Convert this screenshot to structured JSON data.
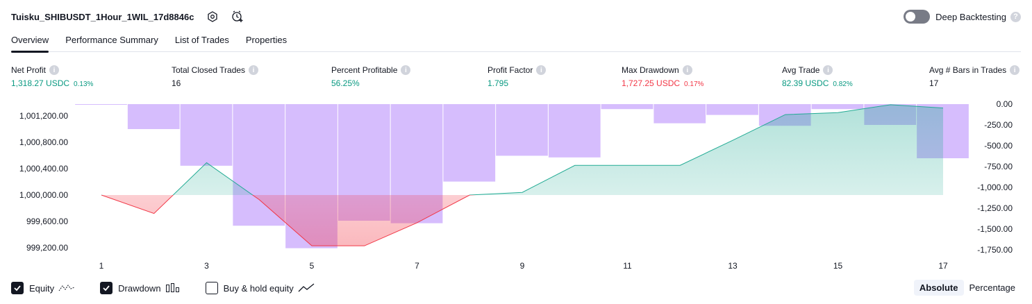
{
  "header": {
    "strategy_name": "Tuisku_SHIBUSDT_1Hour_1WIL_17d8846c",
    "deep_backtesting_label": "Deep Backtesting",
    "deep_backtesting_on": false,
    "icons": [
      "settings-icon",
      "add-alert-icon",
      "help-icon"
    ]
  },
  "tabs": [
    {
      "label": "Overview",
      "active": true
    },
    {
      "label": "Performance Summary",
      "active": false
    },
    {
      "label": "List of Trades",
      "active": false
    },
    {
      "label": "Properties",
      "active": false
    }
  ],
  "metrics": [
    {
      "label": "Net Profit",
      "value": "1,318.27 USDC",
      "pct": "0.13%",
      "color": "green"
    },
    {
      "label": "Total Closed Trades",
      "value": "16",
      "pct": "",
      "color": "dark"
    },
    {
      "label": "Percent Profitable",
      "value": "56.25%",
      "pct": "",
      "color": "green"
    },
    {
      "label": "Profit Factor",
      "value": "1.795",
      "pct": "",
      "color": "green"
    },
    {
      "label": "Max Drawdown",
      "value": "1,727.25 USDC",
      "pct": "0.17%",
      "color": "red"
    },
    {
      "label": "Avg Trade",
      "value": "82.39 USDC",
      "pct": "0.82%",
      "color": "green"
    },
    {
      "label": "Avg # Bars in Trades",
      "value": "17",
      "pct": "",
      "color": "dark"
    }
  ],
  "chart_data": {
    "type": "line",
    "x_ticks": [
      "1",
      "3",
      "5",
      "7",
      "9",
      "11",
      "13",
      "15",
      "17"
    ],
    "left_axis_ticks": [
      "1,001,200.00",
      "1,000,800.00",
      "1,000,400.00",
      "1,000,000.00",
      "999,600.00",
      "999,200.00"
    ],
    "right_axis_ticks": [
      "0.00",
      "-250.00",
      "-500.00",
      "-750.00",
      "-1,000.00",
      "-1,250.00",
      "-1,500.00",
      "-1,750.00"
    ],
    "equity_baseline": 1000000,
    "series": [
      {
        "name": "Equity",
        "axis": "left",
        "x": [
          1,
          2,
          3,
          4,
          5,
          6,
          7,
          8,
          9,
          10,
          11,
          12,
          13,
          14,
          15,
          16,
          17
        ],
        "values": [
          1000000,
          999720,
          1000490,
          999930,
          999230,
          999230,
          999580,
          1000000,
          1000040,
          1000450,
          1000450,
          1000450,
          1000830,
          1001220,
          1001250,
          1001370,
          1001320
        ]
      },
      {
        "name": "Drawdown",
        "axis": "right",
        "type": "bar",
        "x": [
          1,
          2,
          3,
          4,
          5,
          6,
          7,
          8,
          9,
          10,
          11,
          12,
          13,
          14,
          15,
          16,
          17
        ],
        "values": [
          -5,
          -300,
          -740,
          -1460,
          -1730,
          -1400,
          -1430,
          -930,
          -620,
          -640,
          -60,
          -230,
          -130,
          -260,
          -60,
          -250,
          -650
        ]
      }
    ],
    "colors": {
      "equity_up": "#22ab94",
      "equity_down": "#f23645",
      "drawdown": "#c4a1fc",
      "axis_text": "#131722"
    }
  },
  "footer": {
    "options": [
      {
        "label": "Equity",
        "checked": true,
        "icon": "equity-line-icon"
      },
      {
        "label": "Drawdown",
        "checked": true,
        "icon": "drawdown-bars-icon"
      },
      {
        "label": "Buy & hold equity",
        "checked": false,
        "icon": "buy-hold-line-icon"
      }
    ],
    "modes": [
      {
        "label": "Absolute",
        "active": true
      },
      {
        "label": "Percentage",
        "active": false
      }
    ]
  }
}
